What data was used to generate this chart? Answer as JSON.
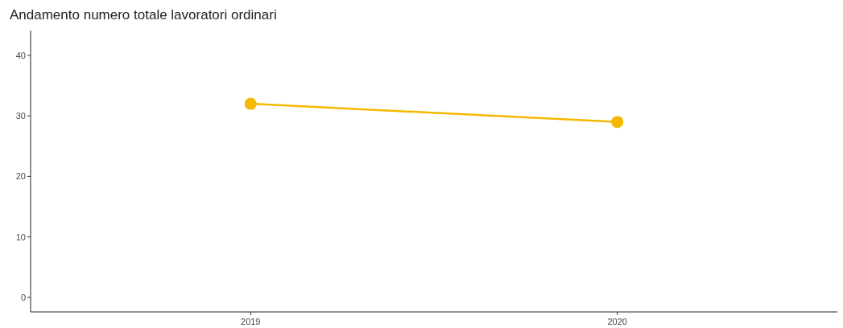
{
  "chart_data": {
    "type": "line",
    "title": "Andamento numero totale lavoratori ordinari",
    "categories": [
      "2019",
      "2020"
    ],
    "series": [
      {
        "color": "#f5b800",
        "values": [
          32,
          29
        ]
      }
    ],
    "ylim": [
      -2.4,
      44.1
    ],
    "yticks": [
      0,
      10,
      20,
      30,
      40
    ],
    "grid": false,
    "marker": "circle",
    "line_style": "solid"
  }
}
